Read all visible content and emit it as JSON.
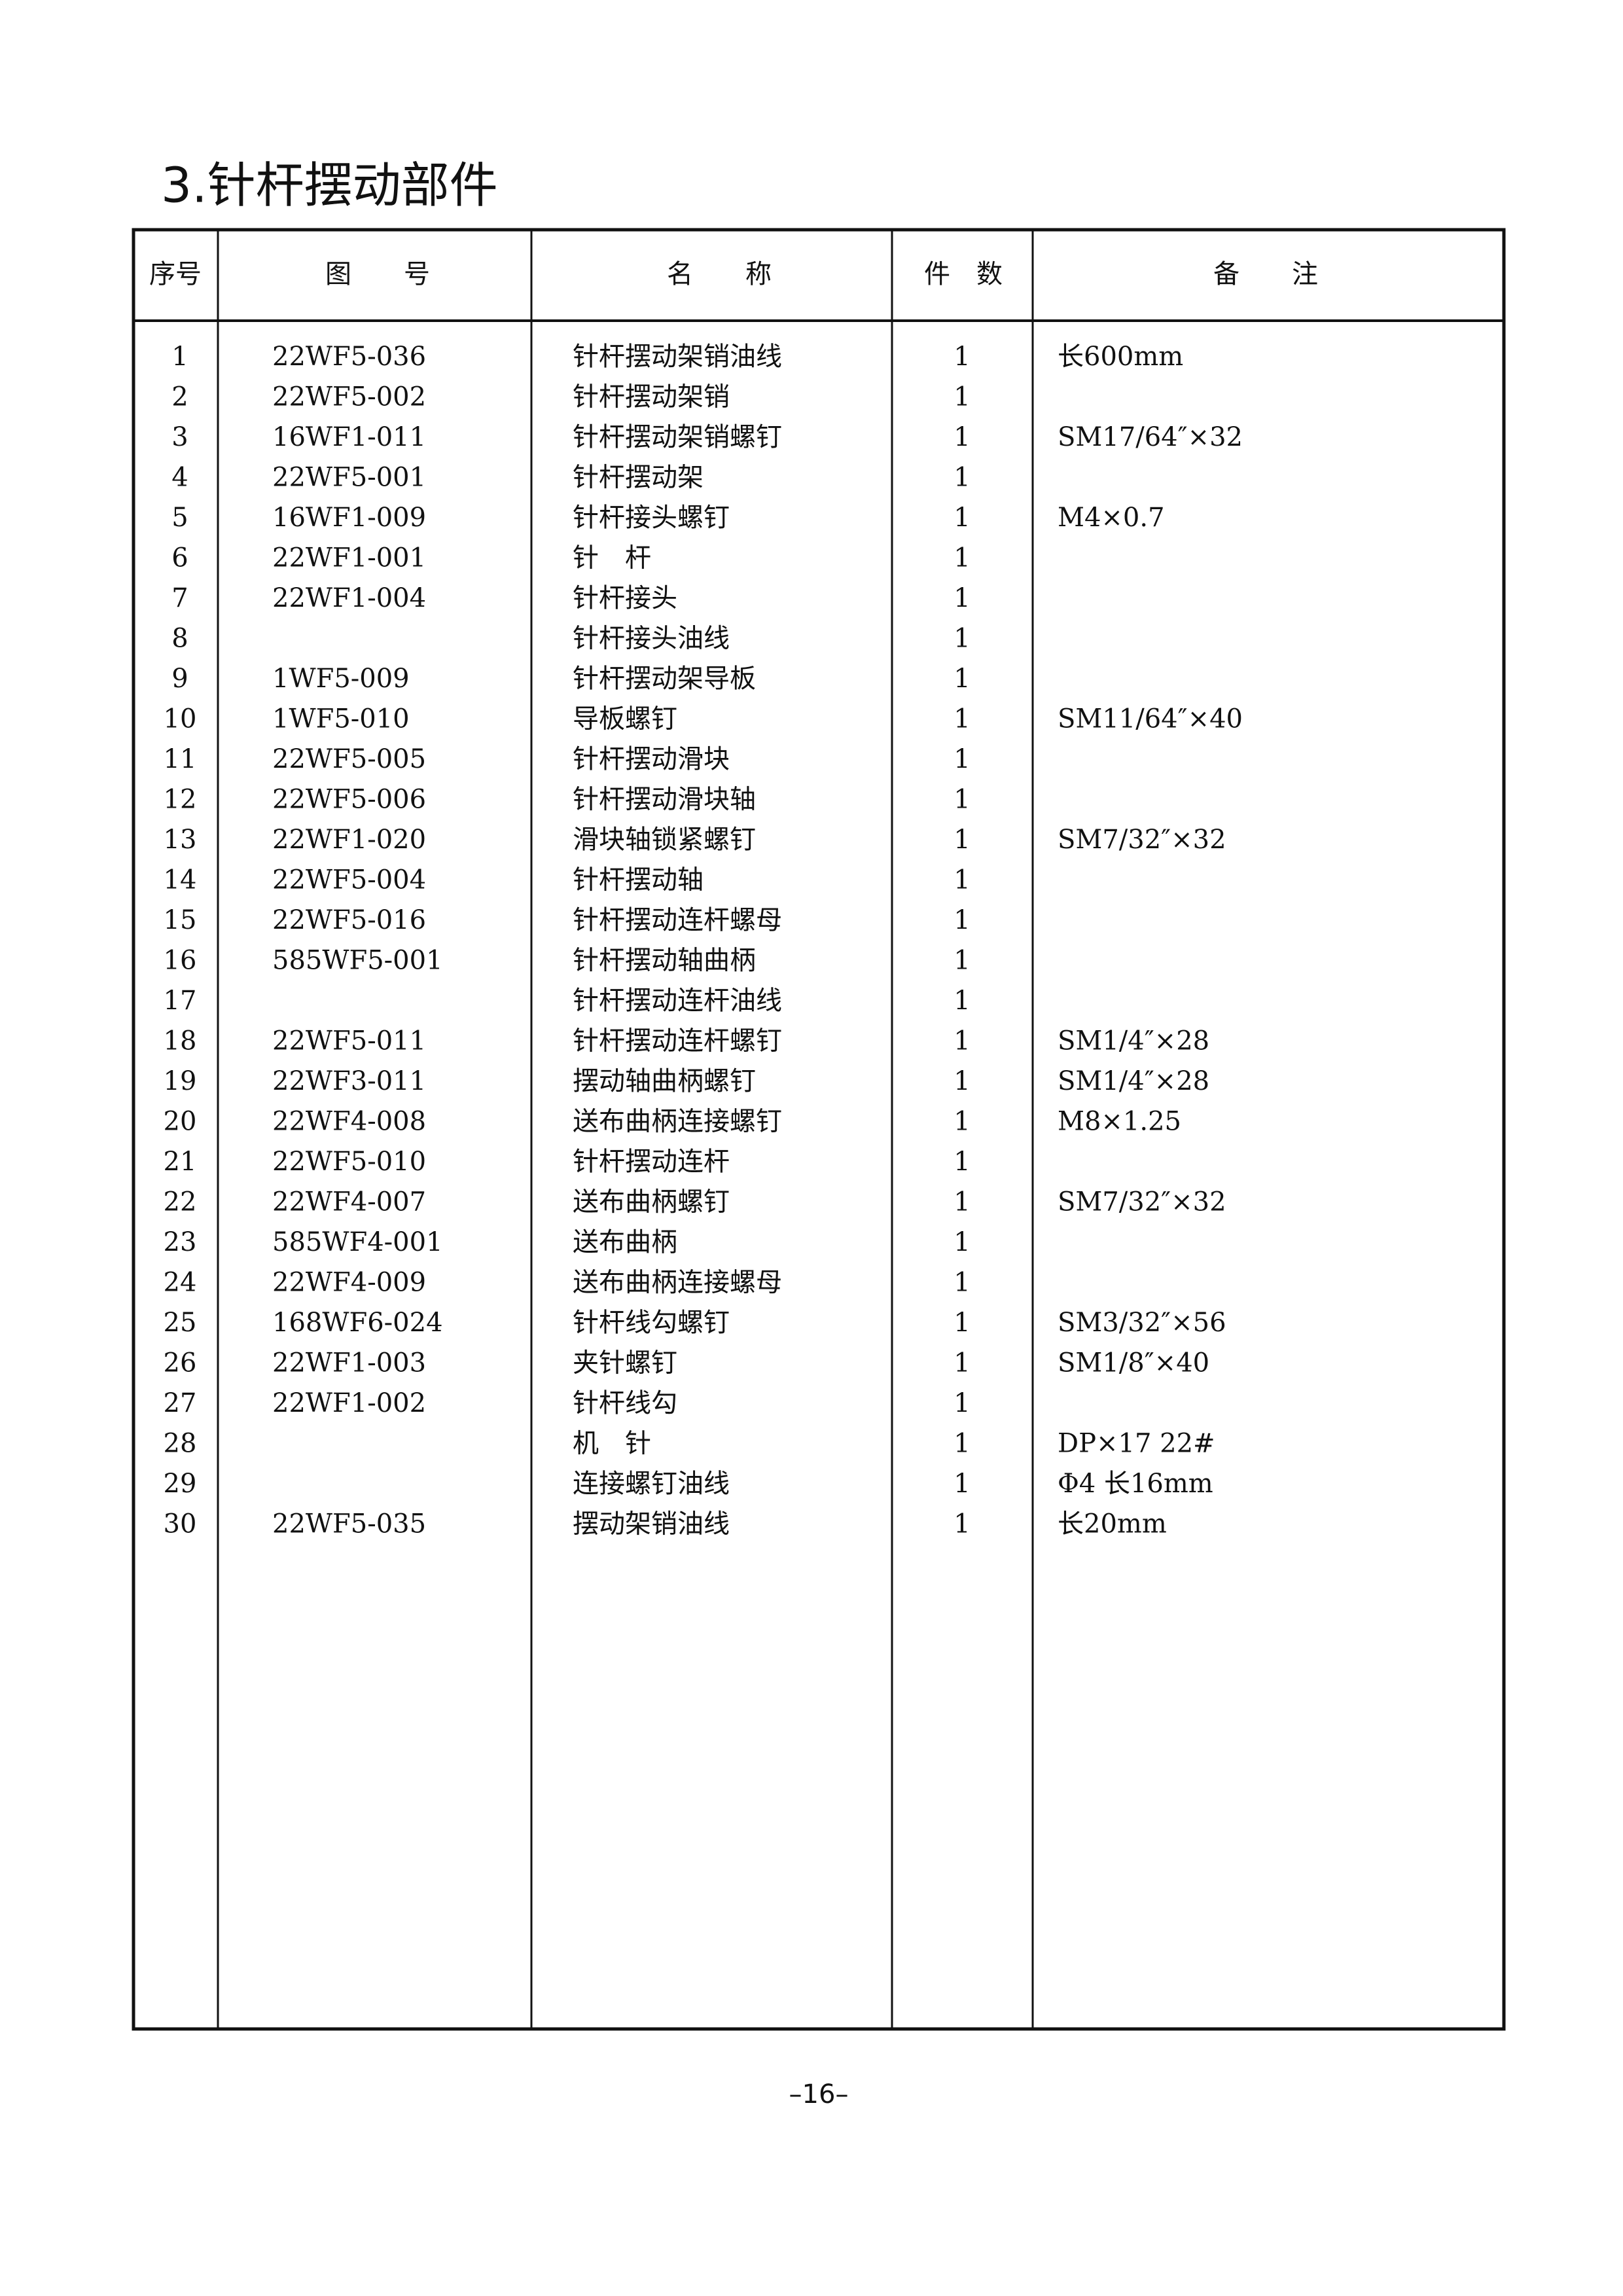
{
  "title": "3.针杆摆动部件",
  "table": {
    "header": [
      "序号",
      "图　　号",
      "名　　称",
      "件　数",
      "备　　注"
    ],
    "rows": [
      [
        "1",
        "22WF5-036",
        "针杆摆动架销油线",
        "1",
        "长600mm"
      ],
      [
        "2",
        "22WF5-002",
        "针杆摆动架销",
        "1",
        null
      ],
      [
        "3",
        "16WF1-011",
        "针杆摆动架销螺钉",
        "1",
        "SM17/64″×32"
      ],
      [
        "4",
        "22WF5-001",
        "针杆摆动架",
        "1",
        null
      ],
      [
        "5",
        "16WF1-009",
        "针杆接头螺钉",
        "1",
        "M4×0.7"
      ],
      [
        "6",
        "22WF1-001",
        "针　杆",
        "1",
        null
      ],
      [
        "7",
        "22WF1-004",
        "针杆接头",
        "1",
        null
      ],
      [
        "8",
        null,
        "针杆接头油线",
        "1",
        null
      ],
      [
        "9",
        "1WF5-009",
        "针杆摆动架导板",
        "1",
        null
      ],
      [
        "10",
        "1WF5-010",
        "导板螺钉",
        "1",
        "SM11/64″×40"
      ],
      [
        "11",
        "22WF5-005",
        "针杆摆动滑块",
        "1",
        null
      ],
      [
        "12",
        "22WF5-006",
        "针杆摆动滑块轴",
        "1",
        null
      ],
      [
        "13",
        "22WF1-020",
        "滑块轴锁紧螺钉",
        "1",
        "SM7/32″×32"
      ],
      [
        "14",
        "22WF5-004",
        "针杆摆动轴",
        "1",
        null
      ],
      [
        "15",
        "22WF5-016",
        "针杆摆动连杆螺母",
        "1",
        null
      ],
      [
        "16",
        "585WF5-001",
        "针杆摆动轴曲柄",
        "1",
        null
      ],
      [
        "17",
        null,
        "针杆摆动连杆油线",
        "1",
        null
      ],
      [
        "18",
        "22WF5-011",
        "针杆摆动连杆螺钉",
        "1",
        "SM1/4″×28"
      ],
      [
        "19",
        "22WF3-011",
        "摆动轴曲柄螺钉",
        "1",
        "SM1/4″×28"
      ],
      [
        "20",
        "22WF4-008",
        "送布曲柄连接螺钉",
        "1",
        "M8×1.25"
      ],
      [
        "21",
        "22WF5-010",
        "针杆摆动连杆",
        "1",
        null
      ],
      [
        "22",
        "22WF4-007",
        "送布曲柄螺钉",
        "1",
        "SM7/32″×32"
      ],
      [
        "23",
        "585WF4-001",
        "送布曲柄",
        "1",
        null
      ],
      [
        "24",
        "22WF4-009",
        "送布曲柄连接螺母",
        "1",
        null
      ],
      [
        "25",
        "168WF6-024",
        "针杆线勾螺钉",
        "1",
        "SM3/32″×56"
      ],
      [
        "26",
        "22WF1-003",
        "夹针螺钉",
        "1",
        "SM1/8″×40"
      ],
      [
        "27",
        "22WF1-002",
        "针杆线勾",
        "1",
        null
      ],
      [
        "28",
        null,
        "机　针",
        "1",
        "DP×17 22#"
      ],
      [
        "29",
        null,
        "连接螺钉油线",
        "1",
        "Φ4 长16mm"
      ],
      [
        "30",
        "22WF5-035",
        "摆动架销油线",
        "1",
        "长20mm"
      ]
    ]
  },
  "footer": {
    "page_number": "–16–"
  }
}
